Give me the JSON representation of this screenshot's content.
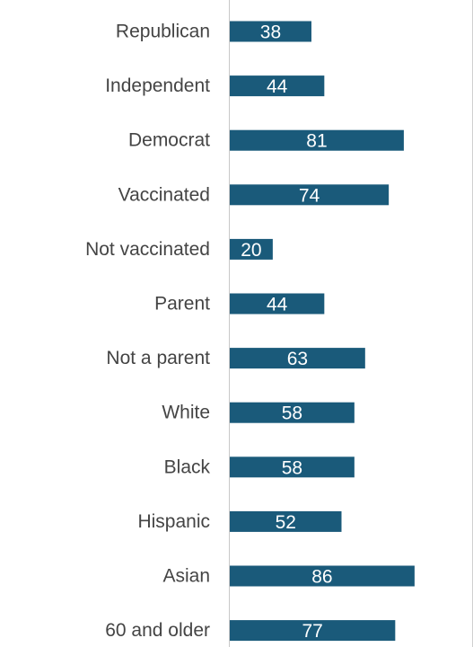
{
  "chart_data": {
    "type": "bar",
    "orientation": "horizontal",
    "categories": [
      "Republican",
      "Independent",
      "Democrat",
      "Vaccinated",
      "Not vaccinated",
      "Parent",
      "Not a parent",
      "White",
      "Black",
      "Hispanic",
      "Asian",
      "60 and older"
    ],
    "values": [
      38,
      44,
      81,
      74,
      20,
      44,
      63,
      58,
      58,
      52,
      86,
      77
    ],
    "data_labels": [
      "38",
      "44",
      "81",
      "74",
      "20",
      "44",
      "63",
      "58",
      "58",
      "52",
      "86",
      "77"
    ],
    "title": "",
    "xlabel": "",
    "ylabel": "",
    "xlim": [
      0,
      100
    ],
    "grid": false,
    "legend": "none",
    "colors": {
      "bar": "#1a5a7a",
      "category_text": "#444444",
      "value_text": "#ffffff",
      "axis": "#c8c8c8"
    }
  }
}
